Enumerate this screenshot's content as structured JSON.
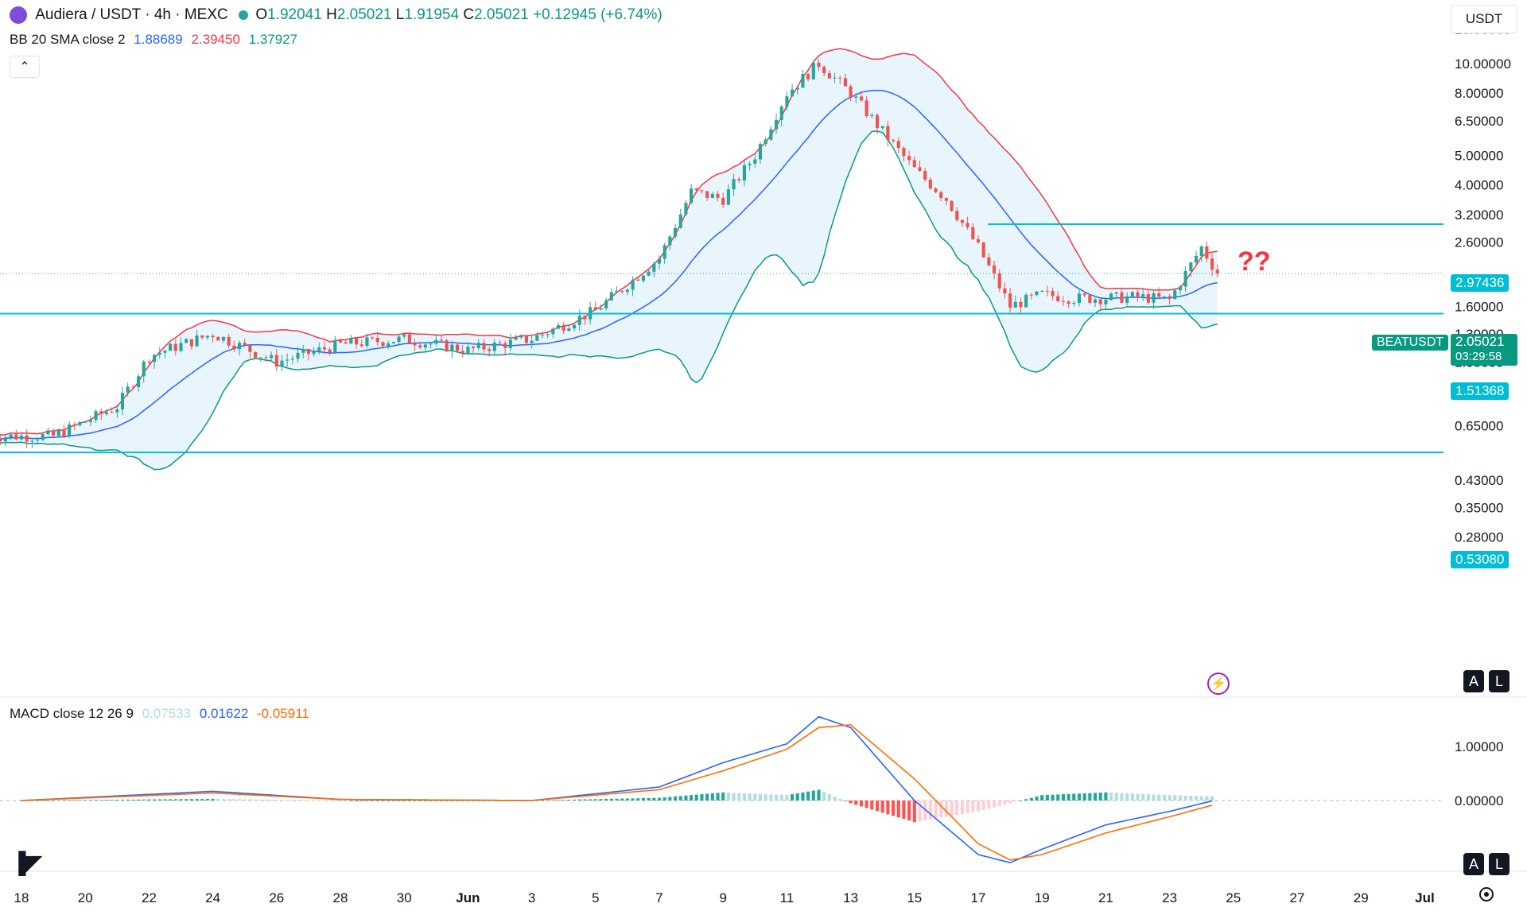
{
  "header": {
    "symbol": "Audiera / USDT · 4h · MEXC",
    "o_label": "O",
    "o": "1.92041",
    "h_label": "H",
    "h": "2.05021",
    "l_label": "L",
    "l": "1.91954",
    "c_label": "C",
    "c": "2.05021",
    "change": "+0.12945 (+6.74%)",
    "bb_label": "BB 20 SMA close 2",
    "bb_basis": "1.88689",
    "bb_upper": "2.39450",
    "bb_lower": "1.37927",
    "macd_label": "MACD close 12 26 9",
    "macd_hist": "0.07533",
    "macd_line": "0.01622",
    "macd_signal": "-0.05911"
  },
  "currency": "USDT",
  "annotation": "??",
  "price_tags": {
    "resistance": "2.97436",
    "symbol": "BEATUSDT",
    "last": "2.05021",
    "countdown": "03:29:58",
    "support_high": "1.51368",
    "support_low": "0.53080"
  },
  "scale_buttons": {
    "auto": "A",
    "log": "L"
  },
  "colors": {
    "up": "#26a69a",
    "down": "#ef5350",
    "bb_upper": "#f23645",
    "bb_lower": "#089981",
    "bb_basis": "#2962ff",
    "bb_fill": "#e3f2fd",
    "hline": "#00bcd4",
    "macd": "#2962ff",
    "signal": "#ff6d00",
    "annotation": "#f23645"
  },
  "chart_data": [
    {
      "type": "candlestick",
      "title": "Audiera / USDT · 4h · MEXC",
      "y_scale": "log",
      "y_ticks": [
        "13.00000",
        "10.00000",
        "8.00000",
        "6.50000",
        "5.00000",
        "4.00000",
        "3.20000",
        "2.60000",
        "1.60000",
        "1.30000",
        "1.05000",
        "0.85000",
        "0.65000",
        "0.43000",
        "0.35000",
        "0.28000"
      ],
      "x_ticks": [
        "18",
        "20",
        "22",
        "24",
        "26",
        "28",
        "30",
        "Jun",
        "3",
        "5",
        "7",
        "9",
        "11",
        "13",
        "15",
        "17",
        "19",
        "21",
        "23",
        "25",
        "27",
        "29",
        "Jul"
      ],
      "horizontal_levels": [
        2.97436,
        1.51368,
        0.5308
      ],
      "last_price": 2.05021,
      "close_trajectory": [
        {
          "x": "17",
          "y": 0.6
        },
        {
          "x": "19",
          "y": 0.6
        },
        {
          "x": "21",
          "y": 0.75
        },
        {
          "x": "22",
          "y": 1.1
        },
        {
          "x": "24",
          "y": 1.3
        },
        {
          "x": "26",
          "y": 1.05
        },
        {
          "x": "28",
          "y": 1.2
        },
        {
          "x": "30",
          "y": 1.25
        },
        {
          "x": "Jun",
          "y": 1.15
        },
        {
          "x": "3",
          "y": 1.25
        },
        {
          "x": "5",
          "y": 1.55
        },
        {
          "x": "7",
          "y": 2.3
        },
        {
          "x": "8",
          "y": 3.8
        },
        {
          "x": "9",
          "y": 3.6
        },
        {
          "x": "10",
          "y": 5.0
        },
        {
          "x": "11",
          "y": 8.0
        },
        {
          "x": "12",
          "y": 10.0
        },
        {
          "x": "13",
          "y": 8.0
        },
        {
          "x": "14",
          "y": 6.0
        },
        {
          "x": "15",
          "y": 4.5
        },
        {
          "x": "16",
          "y": 3.6
        },
        {
          "x": "17",
          "y": 2.5
        },
        {
          "x": "18",
          "y": 1.6
        },
        {
          "x": "19",
          "y": 1.75
        },
        {
          "x": "20",
          "y": 1.7
        },
        {
          "x": "21",
          "y": 1.7
        },
        {
          "x": "22",
          "y": 1.72
        },
        {
          "x": "23",
          "y": 1.68
        },
        {
          "x": "24",
          "y": 2.5
        },
        {
          "x": "24.5",
          "y": 2.05
        }
      ],
      "indicators": [
        "Bollinger Bands 20 SMA close 2"
      ]
    },
    {
      "type": "line",
      "title": "MACD close 12 26 9",
      "y_ticks": [
        "1.00000",
        "0.00000"
      ],
      "series": [
        {
          "name": "MACD",
          "values_at_dates": [
            {
              "x": "18",
              "y": 0.0
            },
            {
              "x": "24",
              "y": 0.17
            },
            {
              "x": "28",
              "y": 0.02
            },
            {
              "x": "3",
              "y": 0.0
            },
            {
              "x": "7",
              "y": 0.25
            },
            {
              "x": "9",
              "y": 0.7
            },
            {
              "x": "11",
              "y": 1.05
            },
            {
              "x": "12",
              "y": 1.55
            },
            {
              "x": "13",
              "y": 1.35
            },
            {
              "x": "15",
              "y": 0.0
            },
            {
              "x": "17",
              "y": -1.0
            },
            {
              "x": "18",
              "y": -1.15
            },
            {
              "x": "19",
              "y": -0.9
            },
            {
              "x": "21",
              "y": -0.45
            },
            {
              "x": "23",
              "y": -0.2
            },
            {
              "x": "24.5",
              "y": 0.016
            }
          ]
        },
        {
          "name": "Signal",
          "values_at_dates": [
            {
              "x": "18",
              "y": 0.0
            },
            {
              "x": "24",
              "y": 0.14
            },
            {
              "x": "28",
              "y": 0.02
            },
            {
              "x": "3",
              "y": 0.0
            },
            {
              "x": "7",
              "y": 0.2
            },
            {
              "x": "9",
              "y": 0.55
            },
            {
              "x": "11",
              "y": 0.95
            },
            {
              "x": "12",
              "y": 1.35
            },
            {
              "x": "13",
              "y": 1.4
            },
            {
              "x": "15",
              "y": 0.4
            },
            {
              "x": "17",
              "y": -0.8
            },
            {
              "x": "18",
              "y": -1.1
            },
            {
              "x": "19",
              "y": -1.0
            },
            {
              "x": "21",
              "y": -0.6
            },
            {
              "x": "23",
              "y": -0.3
            },
            {
              "x": "24.5",
              "y": -0.059
            }
          ]
        }
      ]
    }
  ]
}
